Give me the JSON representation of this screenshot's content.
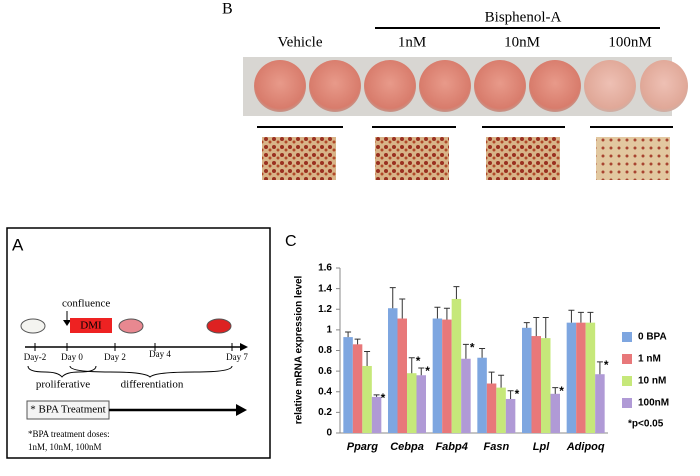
{
  "panel_b": {
    "label": "B",
    "group_title": "Bisphenol-A",
    "conditions": [
      "Vehicle",
      "1nM",
      "10nM",
      "100nM"
    ]
  },
  "panel_a": {
    "label": "A",
    "confluence": "confluence",
    "dmi": "DMI",
    "days": [
      "Day-2",
      "Day 0",
      "Day 2",
      "Day 4",
      "Day 7"
    ],
    "phases": [
      "proliferative",
      "differentiation"
    ],
    "treatment": "* BPA Treatment",
    "doses_title": "*BPA treatment doses:",
    "doses": "1nM, 10nM, 100nM"
  },
  "chart_data": {
    "type": "bar",
    "panel_label": "C",
    "y_label": "relative mRNA expression level",
    "categories": [
      "Pparg",
      "Cebpa",
      "Fabp4",
      "Fasn",
      "Lpl",
      "Adipoq"
    ],
    "series": [
      {
        "name": "0 BPA",
        "color": "#7ea6e0",
        "values": [
          0.93,
          1.21,
          1.11,
          0.73,
          1.02,
          1.07
        ],
        "errors": [
          0.05,
          0.2,
          0.11,
          0.09,
          0.05,
          0.12
        ],
        "significant": [
          false,
          false,
          false,
          false,
          false,
          false
        ]
      },
      {
        "name": "1 nM",
        "color": "#e8787a",
        "values": [
          0.86,
          1.11,
          1.1,
          0.48,
          0.94,
          1.07
        ],
        "errors": [
          0.05,
          0.19,
          0.11,
          0.11,
          0.18,
          0.1
        ],
        "significant": [
          false,
          false,
          false,
          false,
          false,
          false
        ]
      },
      {
        "name": "10 nM",
        "color": "#c6e87a",
        "values": [
          0.65,
          0.58,
          1.3,
          0.44,
          0.92,
          1.07
        ],
        "errors": [
          0.14,
          0.15,
          0.12,
          0.12,
          0.2,
          0.1
        ],
        "significant": [
          false,
          true,
          false,
          false,
          false,
          false
        ]
      },
      {
        "name": "100nM",
        "color": "#b09ad6",
        "values": [
          0.35,
          0.56,
          0.72,
          0.33,
          0.38,
          0.57
        ],
        "errors": [
          0.02,
          0.07,
          0.14,
          0.08,
          0.06,
          0.12
        ],
        "significant": [
          true,
          true,
          true,
          true,
          true,
          true
        ]
      }
    ],
    "significance_marker": "*",
    "note": "*p<0.05",
    "ylim": [
      0,
      1.6
    ],
    "yticks": [
      0,
      0.2,
      0.4,
      0.6,
      0.8,
      1,
      1.2,
      1.4,
      1.6
    ]
  }
}
